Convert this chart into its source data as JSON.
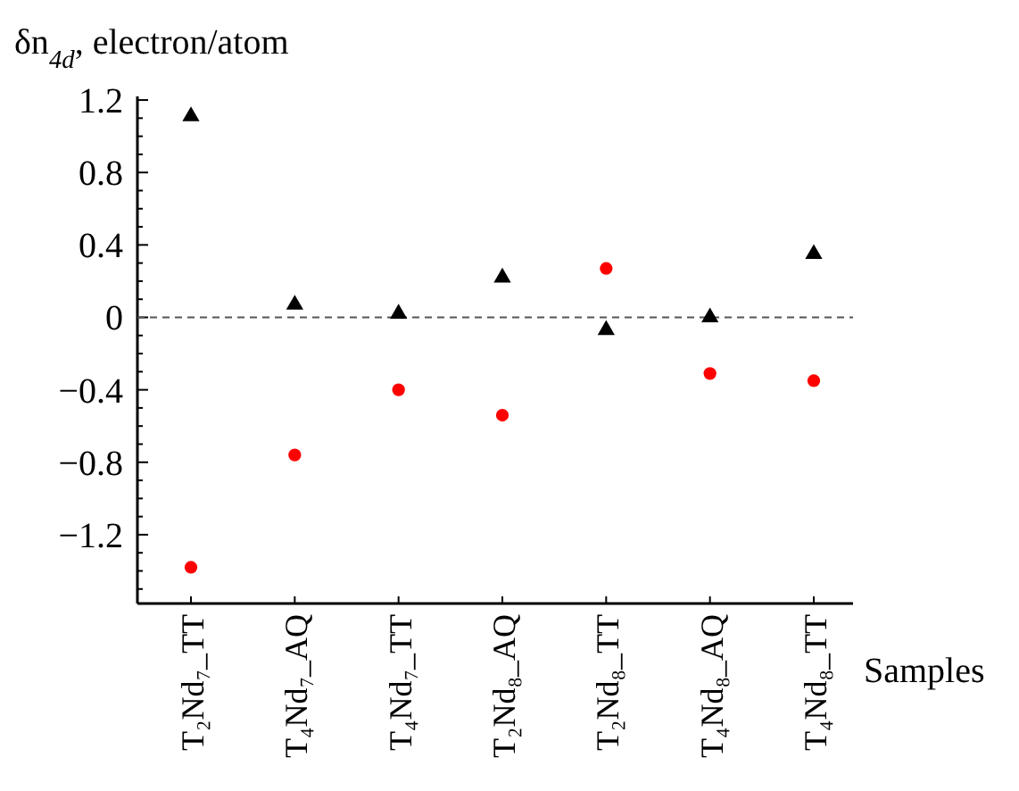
{
  "chart_data": {
    "type": "scatter",
    "ylabel": "δn$_{4d}$, electron/atom",
    "xlabel": "Samples",
    "categories": [
      "T₂Nd₇_TT",
      "T₄Nd₇_AQ",
      "T₄Nd₇_TT",
      "T₂Nd₈_AQ",
      "T₂Nd₈_TT",
      "T₄Nd₈_AQ",
      "T₄Nd₈_TT"
    ],
    "series": [
      {
        "color": "#000000",
        "marker": "triangle",
        "values": [
          1.11,
          0.07,
          0.02,
          0.22,
          -0.07,
          0.0,
          0.35
        ]
      },
      {
        "color": "#ff0000",
        "marker": "circle",
        "values": [
          -1.38,
          -0.76,
          -0.4,
          -0.54,
          0.27,
          -0.31,
          -0.35
        ]
      }
    ],
    "ylim": [
      -1.58,
      1.22
    ],
    "yticks": [
      {
        "value": -1.5,
        "label": null
      },
      {
        "value": -1.4,
        "label": null
      },
      {
        "value": -1.3,
        "label": null
      },
      {
        "value": -1.2,
        "label": "−1.2"
      },
      {
        "value": -1.1,
        "label": null
      },
      {
        "value": -1.0,
        "label": null
      },
      {
        "value": -0.9,
        "label": null
      },
      {
        "value": -0.8,
        "label": "−0.8"
      },
      {
        "value": -0.7,
        "label": null
      },
      {
        "value": -0.6,
        "label": null
      },
      {
        "value": -0.5,
        "label": null
      },
      {
        "value": -0.4,
        "label": "−0.4"
      },
      {
        "value": -0.3,
        "label": null
      },
      {
        "value": -0.2,
        "label": null
      },
      {
        "value": -0.1,
        "label": null
      },
      {
        "value": 0,
        "label": "0"
      },
      {
        "value": 0.1,
        "label": null
      },
      {
        "value": 0.2,
        "label": null
      },
      {
        "value": 0.3,
        "label": null
      },
      {
        "value": 0.4,
        "label": "0.4"
      },
      {
        "value": 0.5,
        "label": null
      },
      {
        "value": 0.6,
        "label": null
      },
      {
        "value": 0.7,
        "label": null
      },
      {
        "value": 0.8,
        "label": "0.8"
      },
      {
        "value": 0.9,
        "label": null
      },
      {
        "value": 1.0,
        "label": null
      },
      {
        "value": 1.1,
        "label": null
      },
      {
        "value": 1.2,
        "label": "1.2"
      }
    ],
    "ref_lines": [
      {
        "axis": "y",
        "value": 0,
        "color": "#555555",
        "line_style": "dashed"
      }
    ]
  }
}
